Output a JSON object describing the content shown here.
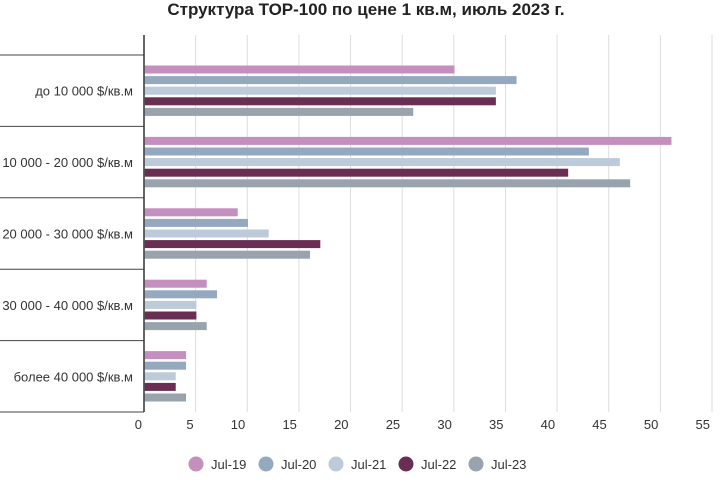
{
  "chart_data": {
    "type": "bar",
    "orientation": "horizontal",
    "title": "Структура ТОР-100 по цене 1 кв.м, июль 2023 г.",
    "categories": [
      "до 10 000 $/кв.м",
      "10 000 - 20 000 $/кв.м",
      "20 000 - 30 000 $/кв.м",
      "30 000 - 40 000 $/кв.м",
      "более 40 000 $/кв.м"
    ],
    "series": [
      {
        "name": "Jul-19",
        "color": "#c48fbf",
        "values": [
          30,
          51,
          9,
          6,
          4
        ]
      },
      {
        "name": "Jul-20",
        "color": "#94a8c0",
        "values": [
          36,
          43,
          10,
          7,
          4
        ]
      },
      {
        "name": "Jul-21",
        "color": "#bccada",
        "values": [
          34,
          46,
          12,
          5,
          3
        ]
      },
      {
        "name": "Jul-22",
        "color": "#6a2e55",
        "values": [
          34,
          41,
          17,
          5,
          3
        ]
      },
      {
        "name": "Jul-23",
        "color": "#98a3ad",
        "values": [
          26,
          47,
          16,
          6,
          4
        ]
      }
    ],
    "xticks": [
      0,
      5,
      10,
      15,
      20,
      25,
      30,
      35,
      40,
      45,
      50,
      55
    ],
    "xlim": [
      0,
      55
    ],
    "xlabel": "",
    "ylabel": "",
    "grid": true,
    "legend_position": "bottom"
  }
}
